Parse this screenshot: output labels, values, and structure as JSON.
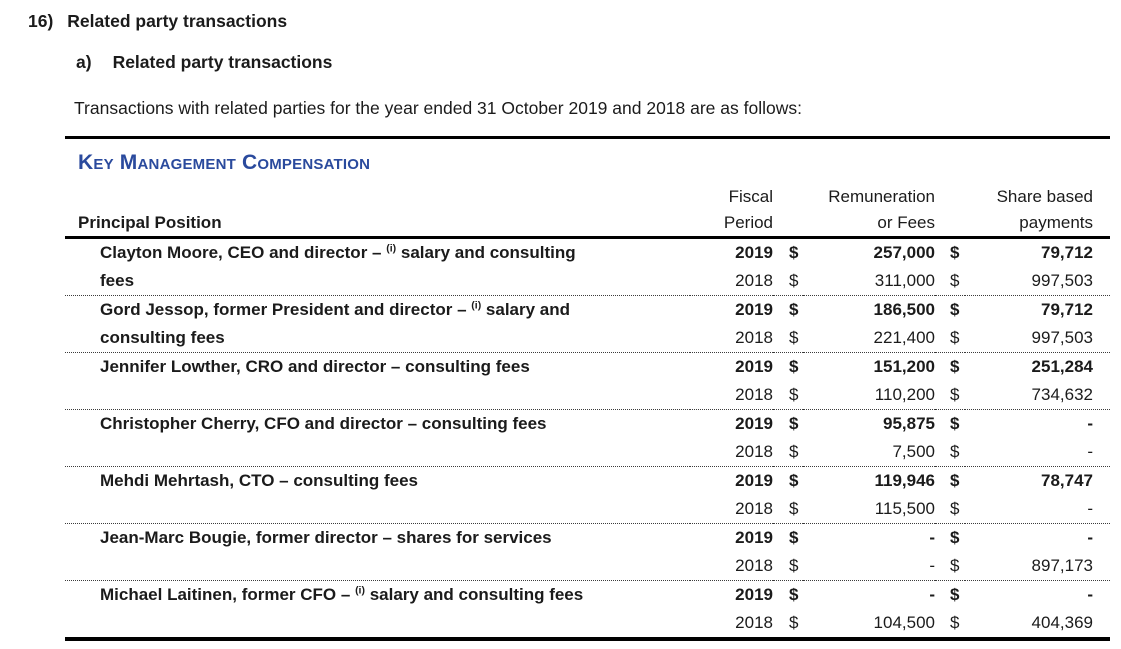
{
  "document": {
    "section_number": "16)",
    "section_title": "Related party transactions",
    "subsection_letter": "a)",
    "subsection_title": "Related party transactions",
    "intro_text": "Transactions with related parties for the year ended 31 October 2019 and 2018 are as follows:"
  },
  "table": {
    "title": "Key Management Compensation",
    "title_color": "#2a4a9d",
    "currency_symbol": "$",
    "header": {
      "principal_position": "Principal Position",
      "fiscal_line1": "Fiscal",
      "fiscal_line2": "Period",
      "remuneration_line1": "Remuneration",
      "remuneration_line2": "or Fees",
      "share_line1": "Share based",
      "share_line2": "payments"
    },
    "rows": [
      {
        "name_pre": "Clayton Moore, CEO and director – ",
        "name_sup": "(i)",
        "name_cont": " salary and consulting",
        "name_line2": "fees",
        "year1": "2019",
        "rem1": "257,000",
        "share1": "79,712",
        "year2": "2018",
        "rem2": "311,000",
        "share2": "997,503"
      },
      {
        "name_pre": "Gord Jessop, former President and director – ",
        "name_sup": "(i)",
        "name_cont": " salary and",
        "name_line2": "consulting fees",
        "year1": "2019",
        "rem1": "186,500",
        "share1": "79,712",
        "year2": "2018",
        "rem2": "221,400",
        "share2": "997,503"
      },
      {
        "name_pre": "Jennifer Lowther, CRO and director – consulting fees",
        "name_sup": "",
        "name_cont": "",
        "name_line2": "",
        "year1": "2019",
        "rem1": "151,200",
        "share1": "251,284",
        "year2": "2018",
        "rem2": "110,200",
        "share2": "734,632"
      },
      {
        "name_pre": "Christopher Cherry, CFO and director – consulting fees",
        "name_sup": "",
        "name_cont": "",
        "name_line2": "",
        "year1": "2019",
        "rem1": "95,875",
        "share1": "-",
        "year2": "2018",
        "rem2": "7,500",
        "share2": "-"
      },
      {
        "name_pre": "Mehdi Mehrtash, CTO – consulting fees",
        "name_sup": "",
        "name_cont": "",
        "name_line2": "",
        "year1": "2019",
        "rem1": "119,946",
        "share1": "78,747",
        "year2": "2018",
        "rem2": "115,500",
        "share2": "-"
      },
      {
        "name_pre": "Jean-Marc Bougie, former director – shares for services",
        "name_sup": "",
        "name_cont": "",
        "name_line2": "",
        "year1": "2019",
        "rem1": "-",
        "share1": "-",
        "year2": "2018",
        "rem2": "-",
        "share2": "897,173"
      },
      {
        "name_pre": "Michael Laitinen, former CFO – ",
        "name_sup": "(i)",
        "name_cont": " salary and consulting fees",
        "name_line2": "",
        "year1": "2019",
        "rem1": "-",
        "share1": "-",
        "year2": "2018",
        "rem2": "104,500",
        "share2": "404,369"
      }
    ]
  }
}
